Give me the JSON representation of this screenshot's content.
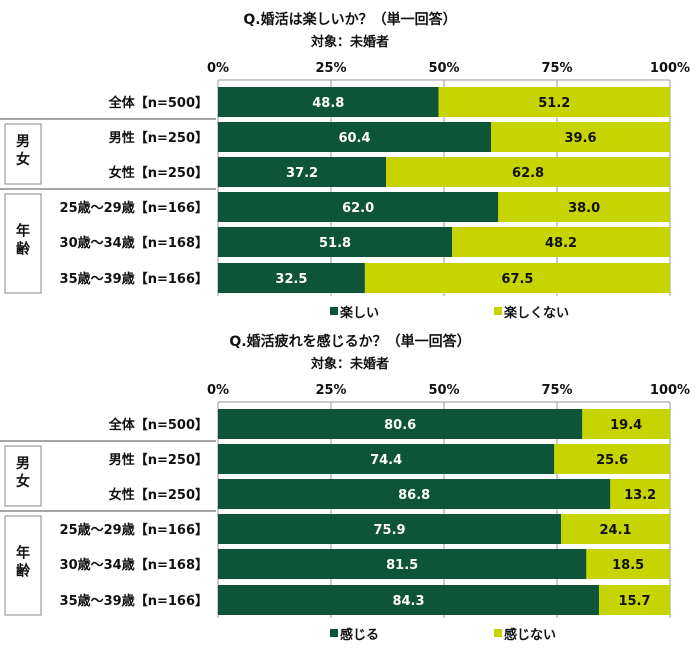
{
  "colors": {
    "positive": "#0d5438",
    "negative": "#c8d400"
  },
  "chart_data": [
    {
      "type": "bar",
      "stacked": true,
      "orientation": "horizontal",
      "title": "Q.婚活は楽しいか？（単一回答）",
      "subtitle": "対象：未婚者",
      "xlim": [
        0,
        100
      ],
      "xticks": [
        "0%",
        "25%",
        "50%",
        "75%",
        "100%"
      ],
      "grid": true,
      "legend_position": "bottom",
      "groups": [
        {
          "label": "",
          "rows": [
            0
          ]
        },
        {
          "label": "男女",
          "rows": [
            1,
            2
          ]
        },
        {
          "label": "年齢",
          "rows": [
            3,
            4,
            5
          ]
        }
      ],
      "categories": [
        "全体【n=500】",
        "男性【n=250】",
        "女性【n=250】",
        "25歳～29歳【n=166】",
        "30歳～34歳【n=168】",
        "35歳～39歳【n=166】"
      ],
      "series": [
        {
          "name": "楽しい",
          "values": [
            48.8,
            60.4,
            37.2,
            62.0,
            51.8,
            32.5
          ],
          "labels": [
            "48.8",
            "60.4",
            "37.2",
            "62.0",
            "51.8",
            "32.5"
          ]
        },
        {
          "name": "楽しくない",
          "values": [
            51.2,
            39.6,
            62.8,
            38.0,
            48.2,
            67.5
          ],
          "labels": [
            "51.2",
            "39.6",
            "62.8",
            "38.0",
            "48.2",
            "67.5"
          ]
        }
      ]
    },
    {
      "type": "bar",
      "stacked": true,
      "orientation": "horizontal",
      "title": "Q.婚活疲れを感じるか？（単一回答）",
      "subtitle": "対象：未婚者",
      "xlim": [
        0,
        100
      ],
      "xticks": [
        "0%",
        "25%",
        "50%",
        "75%",
        "100%"
      ],
      "grid": true,
      "legend_position": "bottom",
      "groups": [
        {
          "label": "",
          "rows": [
            0
          ]
        },
        {
          "label": "男女",
          "rows": [
            1,
            2
          ]
        },
        {
          "label": "年齢",
          "rows": [
            3,
            4,
            5
          ]
        }
      ],
      "categories": [
        "全体【n=500】",
        "男性【n=250】",
        "女性【n=250】",
        "25歳～29歳【n=166】",
        "30歳～34歳【n=168】",
        "35歳～39歳【n=166】"
      ],
      "series": [
        {
          "name": "感じる",
          "values": [
            80.6,
            74.4,
            86.8,
            75.9,
            81.5,
            84.3
          ],
          "labels": [
            "80.6",
            "74.4",
            "86.8",
            "75.9",
            "81.5",
            "84.3"
          ]
        },
        {
          "name": "感じない",
          "values": [
            19.4,
            25.6,
            13.2,
            24.1,
            18.5,
            15.7
          ],
          "labels": [
            "19.4",
            "25.6",
            "13.2",
            "24.1",
            "18.5",
            "15.7"
          ]
        }
      ]
    }
  ]
}
